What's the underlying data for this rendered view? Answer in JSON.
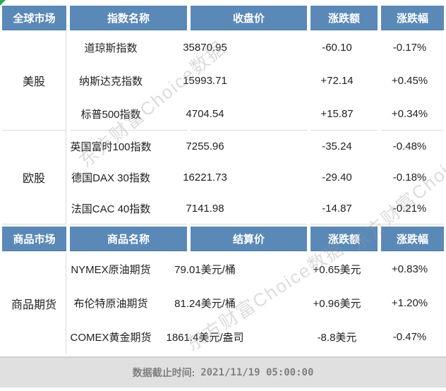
{
  "colors": {
    "header_bg": "#5a89b8",
    "footer_bg": "#e0e0e0",
    "corner_green": "#2cab5c",
    "watermark_gray": "#d6d6d6"
  },
  "watermark": {
    "text": "东方财富Choice数据"
  },
  "tables": [
    {
      "header": [
        "全球市场",
        "指数名称",
        "收盘价",
        "涨跌额",
        "涨跌幅"
      ],
      "sections": [
        {
          "market": "美股",
          "rows": [
            {
              "name": "道琼斯指数",
              "close": "35870.95",
              "change": "-60.10",
              "pct": "-0.17%"
            },
            {
              "name": "纳斯达克指数",
              "close": "15993.71",
              "change": "+72.14",
              "pct": "+0.45%"
            },
            {
              "name": "标普500指数",
              "close": "4704.54",
              "change": "+15.87",
              "pct": "+0.34%"
            }
          ]
        },
        {
          "market": "欧股",
          "rows": [
            {
              "name": "英国富时100指数",
              "close": "7255.96",
              "change": "-35.24",
              "pct": "-0.48%"
            },
            {
              "name": "德国DAX 30指数",
              "close": "16221.73",
              "change": "-29.40",
              "pct": "-0.18%"
            },
            {
              "name": "法国CAC 40指数",
              "close": "7141.98",
              "change": "-14.87",
              "pct": "-0.21%"
            }
          ]
        }
      ]
    },
    {
      "header": [
        "商品市场",
        "商品名称",
        "结算价",
        "涨跌额",
        "涨跌幅"
      ],
      "sections": [
        {
          "market": "商品期货",
          "rows": [
            {
              "name": "NYMEX原油期货",
              "close": "79.01美元/桶",
              "change": "+0.65美元",
              "pct": "+0.83%"
            },
            {
              "name": "布伦特原油期货",
              "close": "81.24美元/桶",
              "change": "+0.96美元",
              "pct": "+1.20%"
            },
            {
              "name": "COMEX黄金期货",
              "close": "1861.4美元/盎司",
              "change": "-8.8美元",
              "pct": "-0.47%"
            }
          ]
        }
      ]
    }
  ],
  "footer": {
    "label": "数据截止时间:",
    "value": "2021/11/19 05:00:00"
  }
}
